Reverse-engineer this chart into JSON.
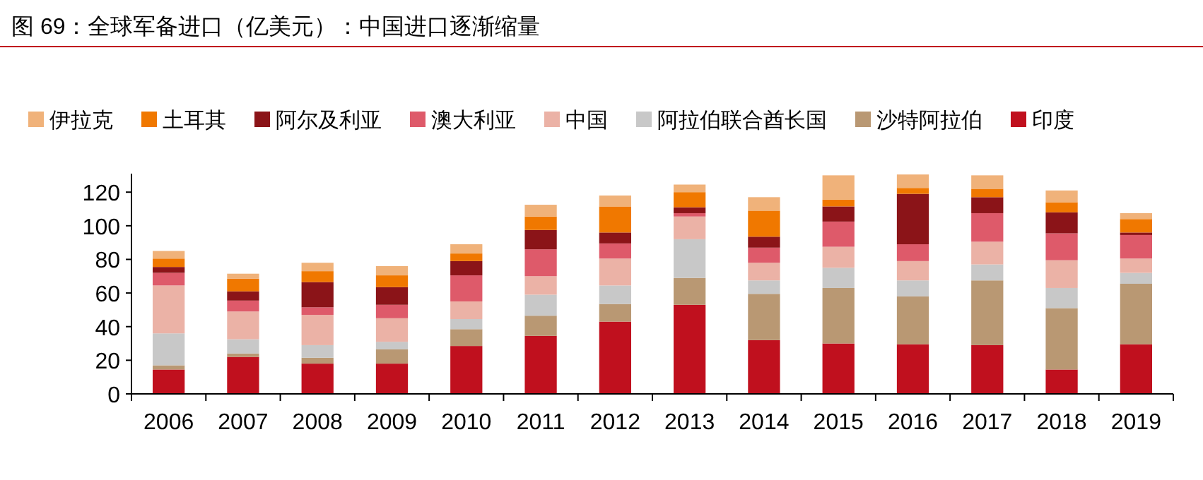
{
  "chart_data": {
    "type": "bar",
    "stacked": true,
    "title": "图 69：全球军备进口（亿美元）：中国进口逐渐缩量",
    "categories": [
      "2006",
      "2007",
      "2008",
      "2009",
      "2010",
      "2011",
      "2012",
      "2013",
      "2014",
      "2015",
      "2016",
      "2017",
      "2018",
      "2019"
    ],
    "ylim": [
      0,
      131
    ],
    "yticks": [
      0,
      20,
      40,
      60,
      80,
      100,
      120
    ],
    "grid": false,
    "legend": "top",
    "series": [
      {
        "name": "印度",
        "color": "#c0101e",
        "values": [
          14.5,
          22,
          18,
          18,
          28.5,
          34.5,
          43,
          53,
          32,
          30,
          29.5,
          29,
          14.5,
          29.5
        ]
      },
      {
        "name": "沙特阿拉伯",
        "color": "#b99873",
        "values": [
          2.5,
          2,
          3.5,
          8.5,
          10,
          12,
          10.5,
          16,
          27.5,
          33,
          28.5,
          38.5,
          36.5,
          36
        ]
      },
      {
        "name": "阿拉伯联合酋长国",
        "color": "#c8c8c8",
        "values": [
          19,
          8.5,
          7.5,
          4.5,
          6,
          12.5,
          11,
          23,
          8,
          12,
          9.5,
          9.5,
          12,
          6.5
        ]
      },
      {
        "name": "中国",
        "color": "#ebb2a6",
        "values": [
          28.5,
          16.5,
          18,
          14,
          10.5,
          11,
          16,
          13.5,
          10.5,
          12.5,
          11.5,
          13.5,
          16.5,
          8.5
        ]
      },
      {
        "name": "澳大利亚",
        "color": "#de5a6a",
        "values": [
          7.5,
          6.5,
          4.5,
          8,
          15.5,
          16,
          9,
          2,
          9,
          15,
          10,
          17,
          16,
          14
        ]
      },
      {
        "name": "阿尔及利亚",
        "color": "#8b1418",
        "values": [
          3.5,
          5.5,
          15,
          10.5,
          8.5,
          11.5,
          6.5,
          3.5,
          6.5,
          9,
          30,
          9.5,
          12.5,
          1.5
        ]
      },
      {
        "name": "土耳其",
        "color": "#f07800",
        "values": [
          5,
          7.5,
          6.5,
          7,
          4.5,
          8,
          15.5,
          9,
          15.5,
          4,
          3.5,
          5,
          6,
          8
        ]
      },
      {
        "name": "伊拉克",
        "color": "#f0b27a",
        "values": [
          4.5,
          3,
          5,
          5.5,
          5.5,
          7,
          6.5,
          4.5,
          8,
          14.5,
          8,
          8,
          7,
          3.5
        ]
      }
    ]
  }
}
